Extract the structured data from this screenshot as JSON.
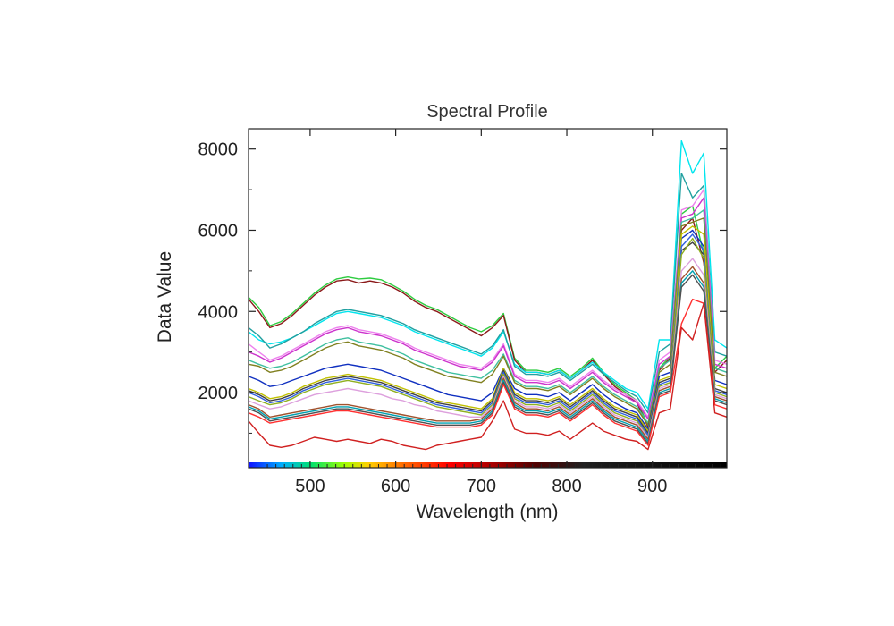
{
  "chart_data": {
    "type": "line",
    "title": "Spectral Profile",
    "xlabel": "Wavelength (nm)",
    "ylabel": "Data Value",
    "xlim": [
      428,
      987
    ],
    "ylim": [
      150,
      8500
    ],
    "x_ticks": [
      500,
      600,
      700,
      800,
      900
    ],
    "y_ticks": [
      2000,
      4000,
      6000,
      8000
    ],
    "grid": false,
    "legend": "none",
    "x": [
      428,
      440,
      453,
      466,
      479,
      492,
      505,
      518,
      531,
      544,
      557,
      570,
      583,
      596,
      609,
      622,
      635,
      648,
      661,
      674,
      687,
      700,
      713,
      726,
      739,
      752,
      765,
      778,
      791,
      804,
      817,
      830,
      843,
      856,
      869,
      882,
      895,
      908,
      921,
      934,
      947,
      960,
      973,
      987
    ],
    "series": [
      {
        "color": "#2ecc40",
        "values": [
          4350,
          4100,
          3650,
          3750,
          3950,
          4200,
          4450,
          4650,
          4800,
          4850,
          4800,
          4820,
          4780,
          4650,
          4500,
          4300,
          4150,
          4050,
          3900,
          3750,
          3600,
          3500,
          3650,
          3950,
          2850,
          2550,
          2550,
          2500,
          2600,
          2400,
          2600,
          2850,
          2500,
          2200,
          2000,
          1800,
          1200,
          2600,
          2900,
          6400,
          6600,
          5400,
          2600,
          2900
        ]
      },
      {
        "color": "#8b1a1a",
        "values": [
          4300,
          4000,
          3600,
          3700,
          3900,
          4150,
          4400,
          4600,
          4750,
          4780,
          4700,
          4750,
          4700,
          4600,
          4450,
          4250,
          4100,
          4000,
          3850,
          3700,
          3550,
          3400,
          3600,
          3900,
          2800,
          2500,
          2500,
          2450,
          2550,
          2350,
          2550,
          2800,
          2450,
          2150,
          1950,
          1750,
          1150,
          2550,
          2850,
          6000,
          6300,
          5200,
          2500,
          2800
        ]
      },
      {
        "color": "#00e5ee",
        "values": [
          3500,
          3300,
          3200,
          3250,
          3350,
          3500,
          3650,
          3800,
          3950,
          4000,
          3950,
          3900,
          3850,
          3750,
          3650,
          3500,
          3400,
          3300,
          3200,
          3100,
          3000,
          2900,
          3100,
          3500,
          2700,
          2500,
          2500,
          2450,
          2550,
          2350,
          2550,
          2750,
          2500,
          2300,
          2100,
          2000,
          1600,
          3300,
          3300,
          8200,
          7400,
          7900,
          3300,
          3100
        ]
      },
      {
        "color": "#20a0a0",
        "values": [
          3600,
          3400,
          3100,
          3200,
          3350,
          3500,
          3700,
          3850,
          4000,
          4050,
          4000,
          3950,
          3900,
          3800,
          3700,
          3550,
          3450,
          3350,
          3250,
          3150,
          3050,
          2950,
          3150,
          3550,
          2650,
          2450,
          2450,
          2400,
          2500,
          2300,
          2500,
          2700,
          2450,
          2250,
          2050,
          1900,
          1500,
          3000,
          3200,
          7400,
          6800,
          7100,
          3000,
          2900
        ]
      },
      {
        "color": "#ee82ee",
        "values": [
          3200,
          3000,
          2800,
          2900,
          3050,
          3200,
          3350,
          3500,
          3600,
          3650,
          3550,
          3500,
          3450,
          3350,
          3250,
          3100,
          3000,
          2900,
          2800,
          2700,
          2650,
          2600,
          2800,
          3200,
          2450,
          2300,
          2300,
          2250,
          2350,
          2150,
          2350,
          2550,
          2300,
          2100,
          1950,
          1800,
          1400,
          2800,
          3000,
          6500,
          6600,
          7000,
          2800,
          2700
        ]
      },
      {
        "color": "#cc33cc",
        "values": [
          3000,
          2900,
          2750,
          2850,
          3000,
          3150,
          3300,
          3450,
          3550,
          3600,
          3500,
          3450,
          3400,
          3300,
          3200,
          3050,
          2950,
          2850,
          2750,
          2650,
          2600,
          2550,
          2750,
          3150,
          2400,
          2250,
          2250,
          2200,
          2300,
          2100,
          2300,
          2500,
          2250,
          2050,
          1900,
          1750,
          1350,
          2700,
          2900,
          6300,
          6400,
          6800,
          2700,
          2600
        ]
      },
      {
        "color": "#40c0a0",
        "values": [
          2800,
          2700,
          2600,
          2650,
          2750,
          2900,
          3050,
          3200,
          3300,
          3350,
          3250,
          3200,
          3150,
          3050,
          2950,
          2800,
          2700,
          2600,
          2500,
          2450,
          2400,
          2350,
          2550,
          2950,
          2300,
          2150,
          2150,
          2100,
          2200,
          2000,
          2200,
          2400,
          2150,
          1950,
          1800,
          1650,
          1250,
          2600,
          2800,
          6200,
          6300,
          6500,
          2600,
          2500
        ]
      },
      {
        "color": "#808020",
        "values": [
          2700,
          2650,
          2500,
          2550,
          2650,
          2800,
          2950,
          3100,
          3200,
          3250,
          3150,
          3100,
          3050,
          2950,
          2850,
          2700,
          2600,
          2500,
          2400,
          2350,
          2300,
          2250,
          2450,
          2900,
          2250,
          2100,
          2100,
          2050,
          2150,
          1950,
          2150,
          2350,
          2100,
          1900,
          1750,
          1600,
          1200,
          2500,
          2700,
          6100,
          6200,
          6300,
          2500,
          2400
        ]
      },
      {
        "color": "#1030c0",
        "values": [
          2400,
          2300,
          2150,
          2200,
          2300,
          2400,
          2500,
          2600,
          2650,
          2700,
          2650,
          2600,
          2550,
          2450,
          2350,
          2250,
          2150,
          2050,
          1950,
          1900,
          1850,
          1800,
          2000,
          2600,
          2100,
          1950,
          1950,
          1900,
          2000,
          1800,
          2000,
          2200,
          1950,
          1750,
          1600,
          1500,
          1100,
          2400,
          2500,
          5800,
          6000,
          5600,
          2300,
          2200
        ]
      },
      {
        "color": "#c0c000",
        "values": [
          2100,
          2000,
          1850,
          1900,
          2000,
          2150,
          2250,
          2350,
          2400,
          2450,
          2400,
          2350,
          2300,
          2200,
          2100,
          2000,
          1900,
          1800,
          1750,
          1700,
          1650,
          1600,
          1850,
          2600,
          2000,
          1850,
          1850,
          1800,
          1900,
          1700,
          1900,
          2100,
          1850,
          1650,
          1550,
          1450,
          1050,
          2300,
          2400,
          5900,
          6100,
          5900,
          2200,
          2100
        ]
      },
      {
        "color": "#404040",
        "values": [
          2050,
          1950,
          1800,
          1850,
          1950,
          2100,
          2200,
          2300,
          2350,
          2400,
          2350,
          2300,
          2250,
          2150,
          2050,
          1950,
          1850,
          1750,
          1700,
          1650,
          1600,
          1550,
          1800,
          2550,
          1950,
          1800,
          1800,
          1750,
          1850,
          1650,
          1850,
          2050,
          1800,
          1600,
          1500,
          1400,
          1000,
          2250,
          2350,
          5500,
          5700,
          5400,
          2100,
          2000
        ]
      },
      {
        "color": "#3060e0",
        "values": [
          2000,
          1900,
          1750,
          1800,
          1900,
          2050,
          2150,
          2250,
          2300,
          2350,
          2300,
          2250,
          2200,
          2100,
          2000,
          1900,
          1800,
          1700,
          1650,
          1600,
          1550,
          1500,
          1750,
          2500,
          1900,
          1750,
          1750,
          1700,
          1800,
          1600,
          1800,
          2000,
          1750,
          1550,
          1450,
          1350,
          950,
          2200,
          2300,
          5600,
          5900,
          5500,
          2050,
          1950
        ]
      },
      {
        "color": "#90b020",
        "values": [
          1900,
          1800,
          1700,
          1750,
          1850,
          2000,
          2100,
          2200,
          2250,
          2300,
          2250,
          2200,
          2150,
          2050,
          1950,
          1850,
          1750,
          1650,
          1600,
          1550,
          1500,
          1450,
          1700,
          2450,
          1850,
          1700,
          1700,
          1650,
          1750,
          1550,
          1750,
          1950,
          1700,
          1500,
          1400,
          1300,
          900,
          2150,
          2250,
          5400,
          5800,
          5300,
          2000,
          1900
        ]
      },
      {
        "color": "#dda0dd",
        "values": [
          1800,
          1700,
          1600,
          1650,
          1750,
          1850,
          1950,
          2000,
          2050,
          2100,
          2050,
          2000,
          1950,
          1850,
          1800,
          1700,
          1650,
          1550,
          1500,
          1450,
          1400,
          1400,
          1650,
          2400,
          1800,
          1650,
          1650,
          1600,
          1700,
          1500,
          1700,
          1900,
          1650,
          1450,
          1350,
          1250,
          900,
          2100,
          2200,
          5000,
          5300,
          4900,
          1950,
          1850
        ]
      },
      {
        "color": "#a0522d",
        "values": [
          1700,
          1600,
          1400,
          1450,
          1500,
          1550,
          1600,
          1650,
          1700,
          1700,
          1650,
          1600,
          1550,
          1500,
          1450,
          1400,
          1350,
          1300,
          1300,
          1300,
          1300,
          1350,
          1600,
          2350,
          1750,
          1600,
          1600,
          1550,
          1650,
          1450,
          1650,
          1850,
          1600,
          1400,
          1300,
          1200,
          850,
          2050,
          2150,
          4800,
          5100,
          4700,
          1900,
          1800
        ]
      },
      {
        "color": "#00a0b0",
        "values": [
          1650,
          1550,
          1350,
          1400,
          1450,
          1500,
          1550,
          1600,
          1650,
          1650,
          1600,
          1550,
          1500,
          1450,
          1400,
          1350,
          1300,
          1250,
          1250,
          1250,
          1250,
          1300,
          1550,
          2300,
          1700,
          1550,
          1550,
          1500,
          1600,
          1400,
          1600,
          1800,
          1550,
          1350,
          1250,
          1150,
          800,
          2000,
          2100,
          4700,
          5000,
          4600,
          1850,
          1750
        ]
      },
      {
        "color": "#505050",
        "values": [
          1600,
          1500,
          1300,
          1350,
          1400,
          1450,
          1500,
          1550,
          1600,
          1600,
          1550,
          1500,
          1450,
          1400,
          1350,
          1300,
          1250,
          1200,
          1200,
          1200,
          1200,
          1250,
          1500,
          2250,
          1650,
          1500,
          1500,
          1450,
          1550,
          1350,
          1550,
          1750,
          1500,
          1300,
          1200,
          1100,
          750,
          1950,
          2050,
          4600,
          4900,
          4500,
          1800,
          1700
        ]
      },
      {
        "color": "#ff3030",
        "values": [
          1500,
          1400,
          1250,
          1300,
          1350,
          1400,
          1450,
          1500,
          1550,
          1550,
          1500,
          1450,
          1400,
          1350,
          1300,
          1250,
          1200,
          1150,
          1150,
          1150,
          1150,
          1200,
          1450,
          2200,
          1600,
          1450,
          1450,
          1400,
          1500,
          1300,
          1500,
          1700,
          1450,
          1250,
          1150,
          1050,
          700,
          1900,
          2000,
          3700,
          4300,
          4200,
          1700,
          1600
        ]
      },
      {
        "color": "#d02020",
        "values": [
          1300,
          1000,
          700,
          650,
          700,
          800,
          900,
          850,
          800,
          850,
          800,
          750,
          850,
          800,
          700,
          650,
          600,
          700,
          750,
          800,
          850,
          900,
          1300,
          1800,
          1100,
          1000,
          1000,
          950,
          1050,
          850,
          1050,
          1250,
          1050,
          950,
          850,
          800,
          600,
          1500,
          1600,
          3600,
          3300,
          4200,
          1500,
          1400
        ]
      }
    ]
  }
}
